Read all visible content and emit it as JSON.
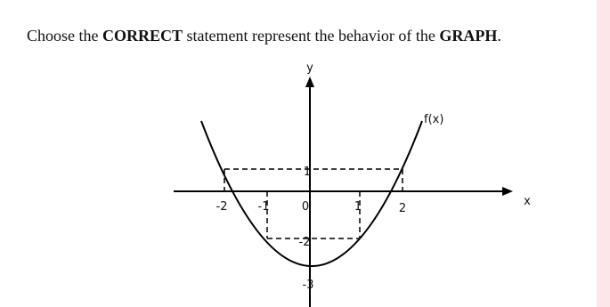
{
  "question": {
    "parts": [
      "Choose the ",
      "CORRECT",
      " statement represent the behavior of the ",
      "GRAPH",
      "."
    ]
  },
  "graph": {
    "x_axis_label": "x",
    "y_axis_label": "y",
    "curve_label": "f(x)",
    "x_tick_labels": [
      "-2",
      "-1",
      "0",
      "1",
      "2"
    ],
    "y_tick_labels": [
      "1",
      "-2",
      "-3"
    ]
  }
}
